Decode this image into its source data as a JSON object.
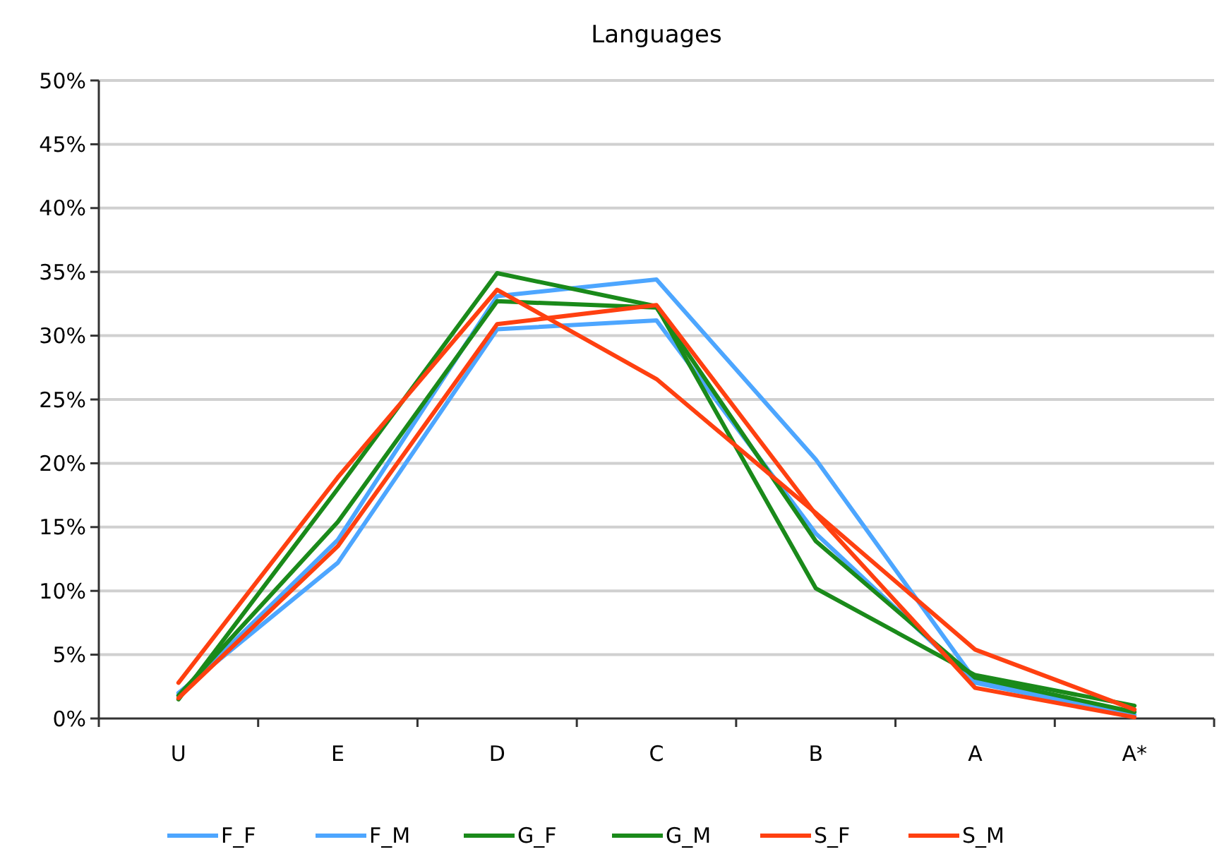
{
  "chart_data": {
    "type": "line",
    "title": "Languages",
    "categories": [
      "U",
      "E",
      "D",
      "C",
      "B",
      "A",
      "A*"
    ],
    "series": [
      {
        "name": "F_F",
        "color": "#4da6ff",
        "values": [
          2.0,
          12.2,
          30.5,
          31.2,
          14.5,
          2.8,
          0.2
        ]
      },
      {
        "name": "F_M",
        "color": "#4da6ff",
        "values": [
          1.8,
          14.0,
          33.1,
          34.4,
          20.3,
          3.0,
          0.3
        ]
      },
      {
        "name": "G_F",
        "color": "#1a8a1a",
        "values": [
          1.5,
          18.0,
          34.9,
          32.3,
          10.2,
          3.4,
          1.0
        ]
      },
      {
        "name": "G_M",
        "color": "#1a8a1a",
        "values": [
          1.8,
          15.4,
          32.7,
          32.2,
          13.9,
          3.2,
          0.5
        ]
      },
      {
        "name": "S_F",
        "color": "#ff4010",
        "values": [
          2.8,
          18.9,
          33.6,
          26.6,
          16.1,
          5.4,
          0.7
        ]
      },
      {
        "name": "S_M",
        "color": "#ff4010",
        "values": [
          1.6,
          13.5,
          30.9,
          32.4,
          16.0,
          2.4,
          0.1
        ]
      }
    ],
    "ylim": [
      0,
      50
    ],
    "yticks": [
      {
        "value": 0,
        "label": "0%"
      },
      {
        "value": 5,
        "label": "5%"
      },
      {
        "value": 10,
        "label": "10%"
      },
      {
        "value": 15,
        "label": "15%"
      },
      {
        "value": 20,
        "label": "20%"
      },
      {
        "value": 25,
        "label": "25%"
      },
      {
        "value": 30,
        "label": "30%"
      },
      {
        "value": 35,
        "label": "35%"
      },
      {
        "value": 40,
        "label": "40%"
      },
      {
        "value": 45,
        "label": "45%"
      },
      {
        "value": 50,
        "label": "50%"
      }
    ],
    "grid": "y",
    "legend": "bottom",
    "marker": "none",
    "line_style": "solid"
  }
}
